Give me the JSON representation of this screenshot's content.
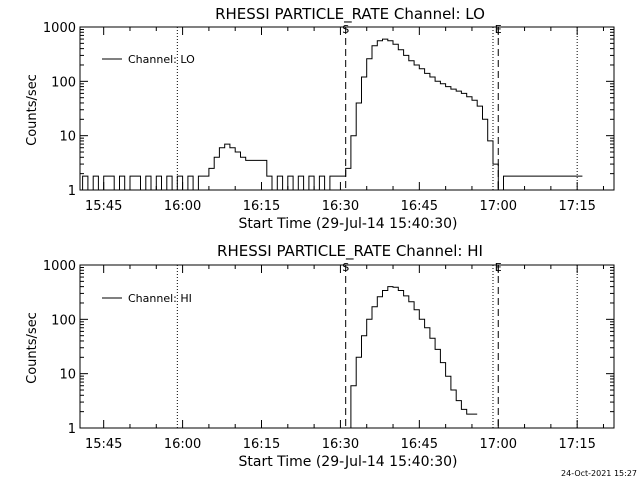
{
  "timestamp": "24-Oct-2021 15:27",
  "chart_data": [
    {
      "type": "line",
      "title": "RHESSI PARTICLE_RATE Channel: LO",
      "xlabel": "Start Time (29-Jul-14 15:40:30)",
      "ylabel": "Counts/sec",
      "yscale": "log",
      "ylim": [
        1,
        1000
      ],
      "xlim": [
        "15:40:30",
        "17:22:00"
      ],
      "x_ticks": [
        "15:45",
        "16:00",
        "16:15",
        "16:30",
        "16:45",
        "17:00",
        "17:15"
      ],
      "y_ticks": [
        "1",
        "10",
        "100",
        "1000"
      ],
      "legend": "Channel: LO",
      "legend_position": "top-left",
      "markers": [
        {
          "label": "S",
          "time": "16:31",
          "style": "dashed"
        },
        {
          "label": "E",
          "time": "17:00",
          "style": "dashed"
        }
      ],
      "dotted_lines": [
        "15:59",
        "16:59",
        "17:15"
      ],
      "series": [
        {
          "name": "Channel: LO",
          "x": [
            "15:40:30",
            "15:41",
            "15:42",
            "15:43",
            "15:44",
            "15:45",
            "15:46",
            "15:47",
            "15:48",
            "15:49",
            "15:50",
            "15:51",
            "15:52",
            "15:53",
            "15:54",
            "15:55",
            "15:56",
            "15:57",
            "15:58",
            "15:59",
            "16:00",
            "16:01",
            "16:02",
            "16:03",
            "16:04",
            "16:05",
            "16:06",
            "16:07",
            "16:08",
            "16:09",
            "16:10",
            "16:11",
            "16:12",
            "16:13",
            "16:14",
            "16:15",
            "16:16",
            "16:17",
            "16:18",
            "16:19",
            "16:20",
            "16:21",
            "16:22",
            "16:23",
            "16:24",
            "16:25",
            "16:26",
            "16:27",
            "16:28",
            "16:29",
            "16:30",
            "16:31",
            "16:32",
            "16:33",
            "16:34",
            "16:35",
            "16:36",
            "16:37",
            "16:38",
            "16:39",
            "16:40",
            "16:41",
            "16:42",
            "16:43",
            "16:44",
            "16:45",
            "16:46",
            "16:47",
            "16:48",
            "16:49",
            "16:50",
            "16:51",
            "16:52",
            "16:53",
            "16:54",
            "16:55",
            "16:56",
            "16:57",
            "16:58",
            "16:59",
            "17:00",
            "17:01",
            "17:02",
            "17:03",
            "17:04",
            "17:05",
            "17:06",
            "17:07",
            "17:08",
            "17:09",
            "17:10",
            "17:11",
            "17:12",
            "17:13",
            "17:14",
            "17:15"
          ],
          "y": [
            1,
            1.8,
            1,
            1.8,
            1,
            1.8,
            1.8,
            1,
            1.8,
            1,
            1.8,
            1.8,
            1,
            1.8,
            1,
            1.8,
            1,
            1.8,
            1,
            1.8,
            1,
            1.8,
            1,
            1.8,
            1.8,
            2.5,
            4,
            6,
            7,
            6,
            5,
            4,
            3.5,
            3.5,
            3.5,
            3.5,
            1.8,
            1,
            1.8,
            1,
            1.8,
            1,
            1.8,
            1,
            1.8,
            1,
            1.8,
            1,
            1.8,
            1.8,
            1.8,
            2.5,
            10,
            40,
            120,
            260,
            450,
            560,
            600,
            560,
            480,
            380,
            300,
            240,
            200,
            170,
            140,
            120,
            100,
            90,
            80,
            72,
            66,
            60,
            52,
            45,
            35,
            20,
            8,
            3,
            1,
            1.8,
            1.8,
            1.8,
            1.8,
            1.8,
            1.8,
            1.8,
            1.8,
            1.8,
            1.8,
            1.8,
            1.8,
            1.8,
            1.8,
            1.8
          ]
        }
      ]
    },
    {
      "type": "line",
      "title": "RHESSI PARTICLE_RATE Channel: HI",
      "xlabel": "Start Time (29-Jul-14 15:40:30)",
      "ylabel": "Counts/sec",
      "yscale": "log",
      "ylim": [
        1,
        1000
      ],
      "xlim": [
        "15:40:30",
        "17:22:00"
      ],
      "x_ticks": [
        "15:45",
        "16:00",
        "16:15",
        "16:30",
        "16:45",
        "17:00",
        "17:15"
      ],
      "y_ticks": [
        "1",
        "10",
        "100",
        "1000"
      ],
      "legend": "Channel: HI",
      "legend_position": "top-left",
      "markers": [
        {
          "label": "S",
          "time": "16:31",
          "style": "dashed"
        },
        {
          "label": "E",
          "time": "17:00",
          "style": "dashed"
        }
      ],
      "dotted_lines": [
        "15:59",
        "16:59",
        "17:15"
      ],
      "series": [
        {
          "name": "Channel: HI",
          "x": [
            "16:31",
            "16:32",
            "16:33",
            "16:34",
            "16:35",
            "16:36",
            "16:37",
            "16:38",
            "16:39",
            "16:40",
            "16:41",
            "16:42",
            "16:43",
            "16:44",
            "16:45",
            "16:46",
            "16:47",
            "16:48",
            "16:49",
            "16:50",
            "16:51",
            "16:52",
            "16:53",
            "16:54",
            "16:55"
          ],
          "y": [
            1,
            6,
            20,
            50,
            100,
            170,
            260,
            340,
            400,
            390,
            340,
            270,
            210,
            150,
            100,
            70,
            45,
            28,
            16,
            9,
            5,
            3.2,
            2.2,
            1.8,
            1.8
          ]
        }
      ]
    }
  ]
}
